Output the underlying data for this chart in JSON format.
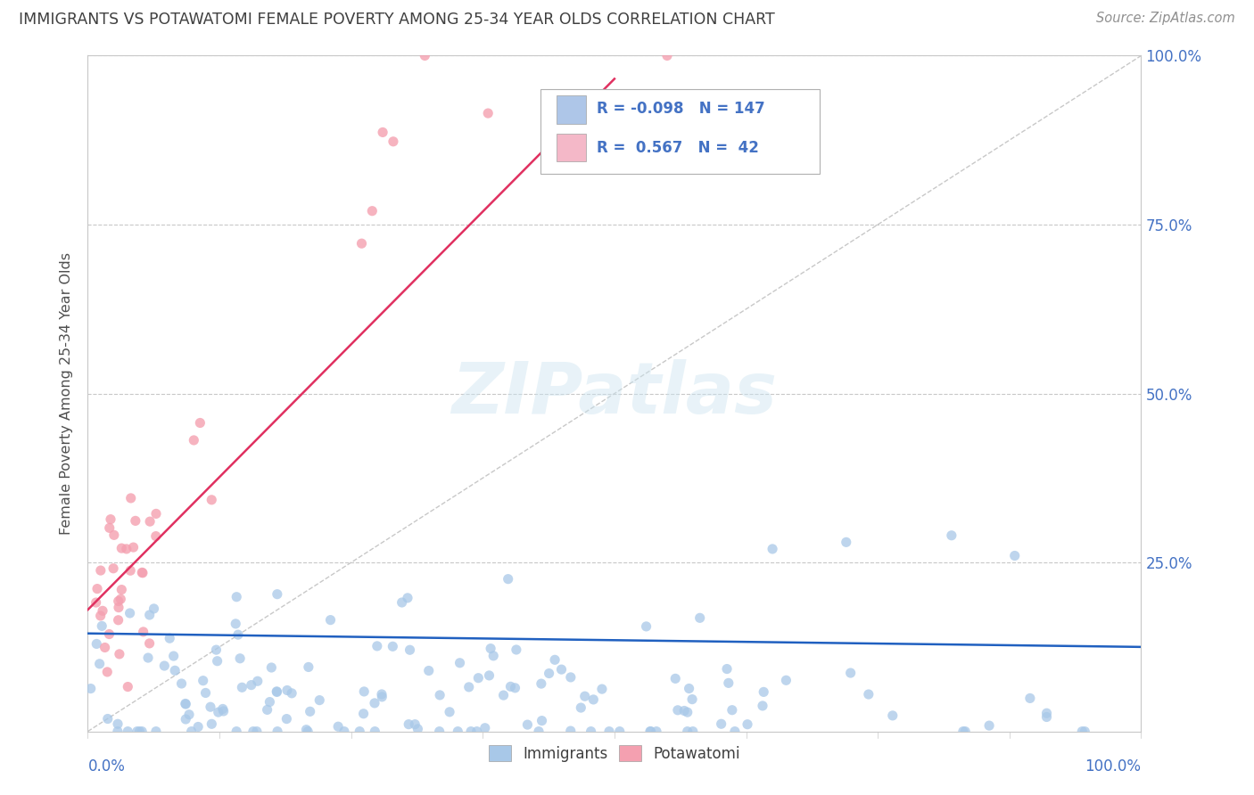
{
  "title": "IMMIGRANTS VS POTAWATOMI FEMALE POVERTY AMONG 25-34 YEAR OLDS CORRELATION CHART",
  "source": "Source: ZipAtlas.com",
  "ylabel": "Female Poverty Among 25-34 Year Olds",
  "watermark": "ZIPatlas",
  "immigrants_color": "#a8c8e8",
  "potawatomi_color": "#f4a0b0",
  "trend_immigrants_color": "#2060c0",
  "trend_potawatomi_color": "#e03060",
  "legend_blue_color": "#4472c4",
  "legend_box_color": "#aec6e8",
  "legend_pink_color": "#f4b8c8",
  "background_color": "#ffffff",
  "grid_color": "#c8c8c8",
  "title_color": "#404040",
  "axis_label_color": "#4472c4",
  "ref_line_color": "#b0b0b0",
  "immigrants_R": -0.098,
  "immigrants_N": 147,
  "potawatomi_R": 0.567,
  "potawatomi_N": 42
}
